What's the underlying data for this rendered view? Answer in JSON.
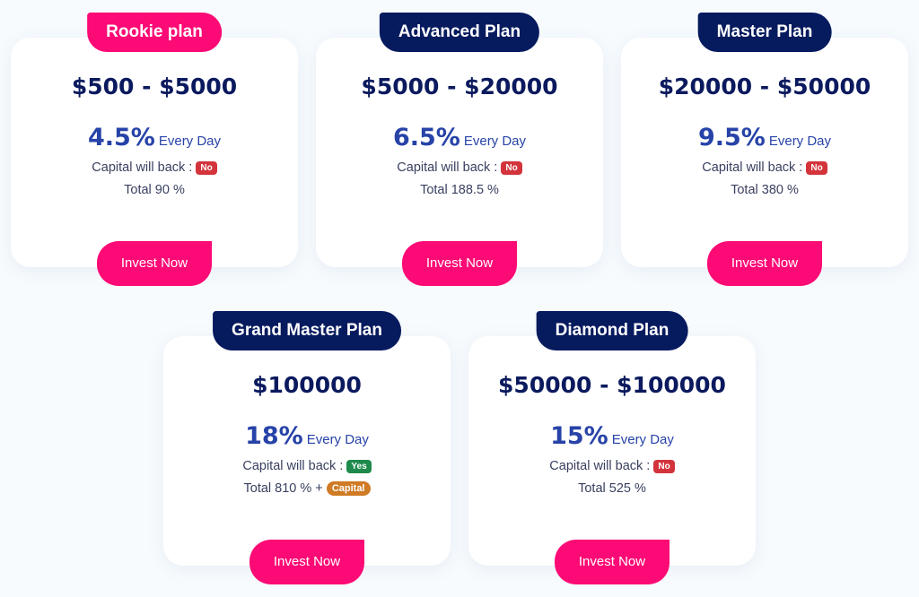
{
  "plans": [
    {
      "name": "Rookie plan",
      "range": "$500 - $5000",
      "rate": "4.5%",
      "period": "Every Day",
      "capital_label": "Capital will back :",
      "capital": "No",
      "total": "Total 90 %",
      "cta": "Invest Now"
    },
    {
      "name": "Advanced Plan",
      "range": "$5000 - $20000",
      "rate": "6.5%",
      "period": "Every Day",
      "capital_label": "Capital will back :",
      "capital": "No",
      "total": "Total 188.5 %",
      "cta": "Invest Now"
    },
    {
      "name": "Master Plan",
      "range": "$20000 - $50000",
      "rate": "9.5%",
      "period": "Every Day",
      "capital_label": "Capital will back :",
      "capital": "No",
      "total": "Total 380 %",
      "cta": "Invest Now"
    },
    {
      "name": "Grand Master Plan",
      "range": "$100000",
      "rate": "18%",
      "period": "Every Day",
      "capital_label": "Capital will back :",
      "capital": "Yes",
      "total": "Total 810 % +",
      "extra": "Capital",
      "cta": "Invest Now"
    },
    {
      "name": "Diamond Plan",
      "range": "$50000 - $100000",
      "rate": "15%",
      "period": "Every Day",
      "capital_label": "Capital will back :",
      "capital": "No",
      "total": "Total 525 %",
      "cta": "Invest Now"
    }
  ],
  "colors": {
    "pink": "#fc0a75",
    "navy": "#061a5e",
    "no": "#d3343c",
    "yes": "#1f8a4c",
    "capital": "#cf7a24"
  }
}
